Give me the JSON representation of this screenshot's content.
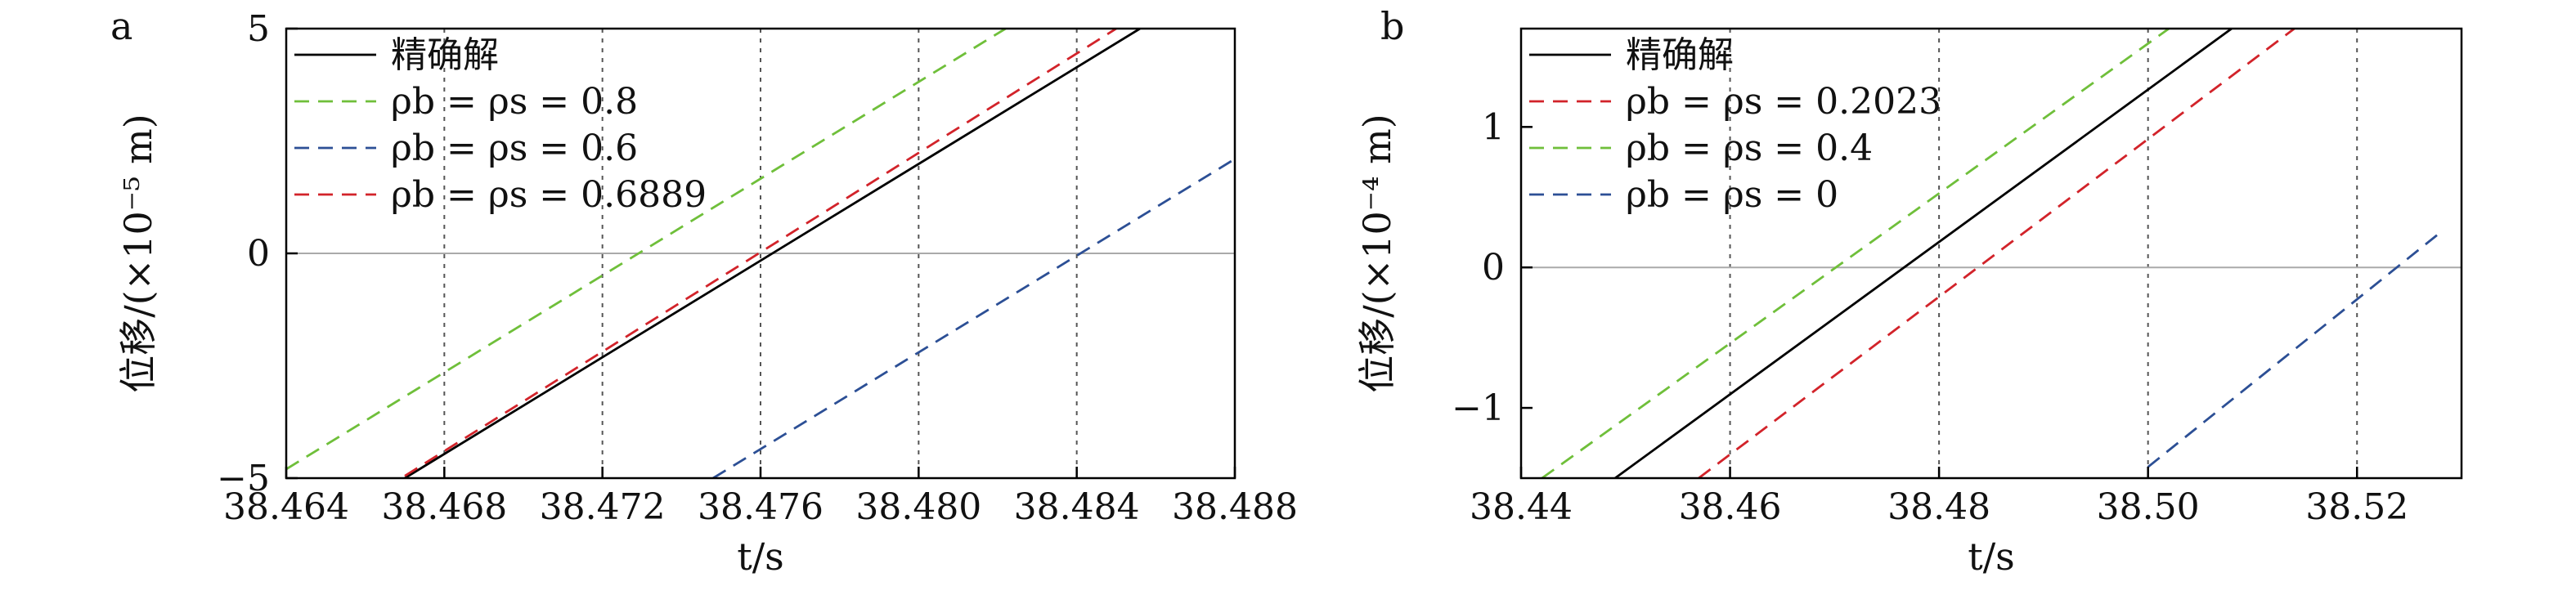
{
  "chart_data": [
    {
      "panel_label": "a",
      "type": "line",
      "xlabel": "t/s",
      "ylabel": "位移/(×10⁻⁵ m)",
      "xlim": [
        38.464,
        38.488
      ],
      "ylim": [
        -5,
        5
      ],
      "x_ticks": [
        38.464,
        38.468,
        38.472,
        38.476,
        38.48,
        38.484,
        38.488
      ],
      "x_tick_labels": [
        "38.464",
        "38.468",
        "38.472",
        "38.476",
        "38.480",
        "38.484",
        "38.488"
      ],
      "y_ticks": [
        -5,
        0,
        5
      ],
      "y_tick_labels": [
        "−5",
        "0",
        "5"
      ],
      "vertical_guides": [
        38.468,
        38.472,
        38.476,
        38.48,
        38.484
      ],
      "zero_line": true,
      "legend_position": "top-left",
      "series": [
        {
          "name": "精确解",
          "color": "#000000",
          "dash": "solid",
          "x": [
            38.467,
            38.4856
          ],
          "y": [
            -5.0,
            5.0
          ]
        },
        {
          "name": "ρb = ρs = 0.8",
          "color": "#6fbf3a",
          "dash": "dashed",
          "x": [
            38.464,
            38.4822
          ],
          "y": [
            -4.8,
            5.0
          ]
        },
        {
          "name": "ρb = ρs = 0.6",
          "color": "#2c4f95",
          "dash": "dashed",
          "x": [
            38.4748,
            38.488
          ],
          "y": [
            -5.0,
            2.1
          ]
        },
        {
          "name": "ρb = ρs = 0.6889",
          "color": "#d2232a",
          "dash": "dashed",
          "x": [
            38.467,
            38.485
          ],
          "y": [
            -4.95,
            5.0
          ]
        }
      ]
    },
    {
      "panel_label": "b",
      "type": "line",
      "xlabel": "t/s",
      "ylabel": "位移/(×10⁻⁴ m)",
      "xlim": [
        38.44,
        38.53
      ],
      "ylim": [
        -1.5,
        1.7
      ],
      "x_ticks": [
        38.44,
        38.46,
        38.48,
        38.5,
        38.52
      ],
      "x_tick_labels": [
        "38.44",
        "38.46",
        "38.48",
        "38.50",
        "38.52"
      ],
      "y_ticks": [
        -1,
        0,
        1
      ],
      "y_tick_labels": [
        "−1",
        "0",
        "1"
      ],
      "vertical_guides": [
        38.46,
        38.48,
        38.5,
        38.52
      ],
      "zero_line": true,
      "legend_position": "top-left",
      "series": [
        {
          "name": "精确解",
          "color": "#000000",
          "dash": "solid",
          "x": [
            38.449,
            38.508
          ],
          "y": [
            -1.5,
            1.7
          ]
        },
        {
          "name": "ρb = ρs = 0.2023",
          "color": "#d2232a",
          "dash": "dashed",
          "x": [
            38.457,
            38.514
          ],
          "y": [
            -1.5,
            1.7
          ]
        },
        {
          "name": "ρb = ρs = 0.4",
          "color": "#6fbf3a",
          "dash": "dashed",
          "x": [
            38.442,
            38.502
          ],
          "y": [
            -1.5,
            1.7
          ]
        },
        {
          "name": "ρb = ρs = 0",
          "color": "#2c4f95",
          "dash": "dashed",
          "x": [
            38.5,
            38.528
          ],
          "y": [
            -1.42,
            0.25
          ]
        }
      ]
    }
  ]
}
